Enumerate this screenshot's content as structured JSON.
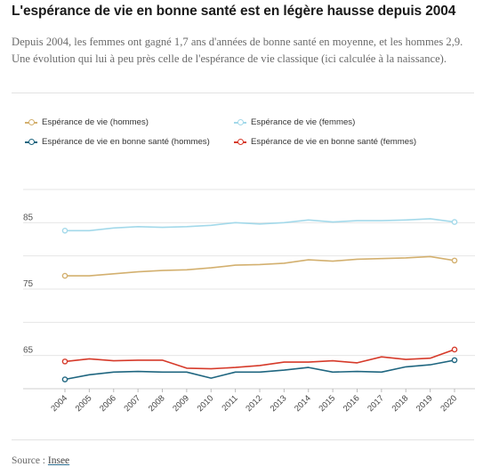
{
  "title": "L'espérance de vie en bonne santé est en légère hausse depuis 2004",
  "subtitle": "Depuis 2004, les femmes ont gagné 1,7 ans d'années de bonne santé en moyenne, et les hommes 2,9. Une évolution qui lui à peu près celle de l'espérance de vie classique (ici calculée à la naissance).",
  "source_label": "Source : ",
  "source_link": "Insee",
  "chart_data": {
    "type": "line",
    "categories": [
      "2004",
      "2005",
      "2006",
      "2007",
      "2008",
      "2009",
      "2010",
      "2011",
      "2012",
      "2013",
      "2014",
      "2015",
      "2016",
      "2017",
      "2018",
      "2019",
      "2020"
    ],
    "ylim": [
      60,
      90
    ],
    "yticks": [
      "65",
      "75",
      "85"
    ],
    "grid": true,
    "legend_position": "top",
    "series": [
      {
        "name": "Espérance de vie (hommes)",
        "color": "#d3b06f",
        "values": [
          77.0,
          77.0,
          77.3,
          77.6,
          77.8,
          77.9,
          78.2,
          78.6,
          78.7,
          78.9,
          79.4,
          79.2,
          79.5,
          79.6,
          79.7,
          79.9,
          79.3
        ]
      },
      {
        "name": "Espérance de vie (femmes)",
        "color": "#a3d9ea",
        "values": [
          83.8,
          83.8,
          84.2,
          84.4,
          84.3,
          84.4,
          84.6,
          85.0,
          84.8,
          85.0,
          85.4,
          85.1,
          85.3,
          85.3,
          85.4,
          85.6,
          85.1
        ]
      },
      {
        "name": "Espérance de vie en bonne santé (hommes)",
        "color": "#1f6680",
        "values": [
          61.4,
          62.1,
          62.5,
          62.6,
          62.5,
          62.5,
          61.6,
          62.5,
          62.5,
          62.8,
          63.2,
          62.5,
          62.6,
          62.5,
          63.3,
          63.6,
          64.3
        ]
      },
      {
        "name": "Espérance de vie en bonne santé (femmes)",
        "color": "#d63a2a",
        "values": [
          64.1,
          64.5,
          64.2,
          64.3,
          64.3,
          63.1,
          63.0,
          63.2,
          63.5,
          64.0,
          64.0,
          64.2,
          63.9,
          64.8,
          64.4,
          64.6,
          65.9
        ]
      }
    ]
  }
}
